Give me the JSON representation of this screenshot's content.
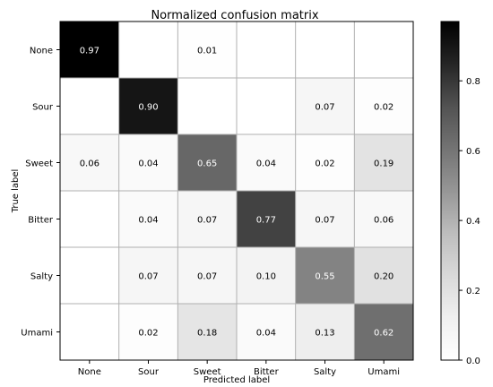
{
  "chart_data": {
    "type": "heatmap",
    "title": "Normalized confusion matrix",
    "xlabel": "Predicted label",
    "ylabel": "True label",
    "x_categories": [
      "None",
      "Sour",
      "Sweet",
      "Bitter",
      "Salty",
      "Umami"
    ],
    "y_categories": [
      "None",
      "Sour",
      "Sweet",
      "Bitter",
      "Salty",
      "Umami"
    ],
    "values": [
      [
        0.97,
        null,
        0.01,
        null,
        null,
        null
      ],
      [
        null,
        0.9,
        null,
        null,
        0.07,
        0.02
      ],
      [
        0.06,
        0.04,
        0.65,
        0.04,
        0.02,
        0.19
      ],
      [
        null,
        0.04,
        0.07,
        0.77,
        0.07,
        0.06
      ],
      [
        null,
        0.07,
        0.07,
        0.1,
        0.55,
        0.2
      ],
      [
        null,
        0.02,
        0.18,
        0.04,
        0.13,
        0.62
      ]
    ],
    "colorbar": {
      "colormap": "Greys",
      "range": [
        0.0,
        0.97
      ],
      "ticks": [
        "0.0",
        "0.2",
        "0.4",
        "0.6",
        "0.8"
      ]
    },
    "grid": true
  }
}
